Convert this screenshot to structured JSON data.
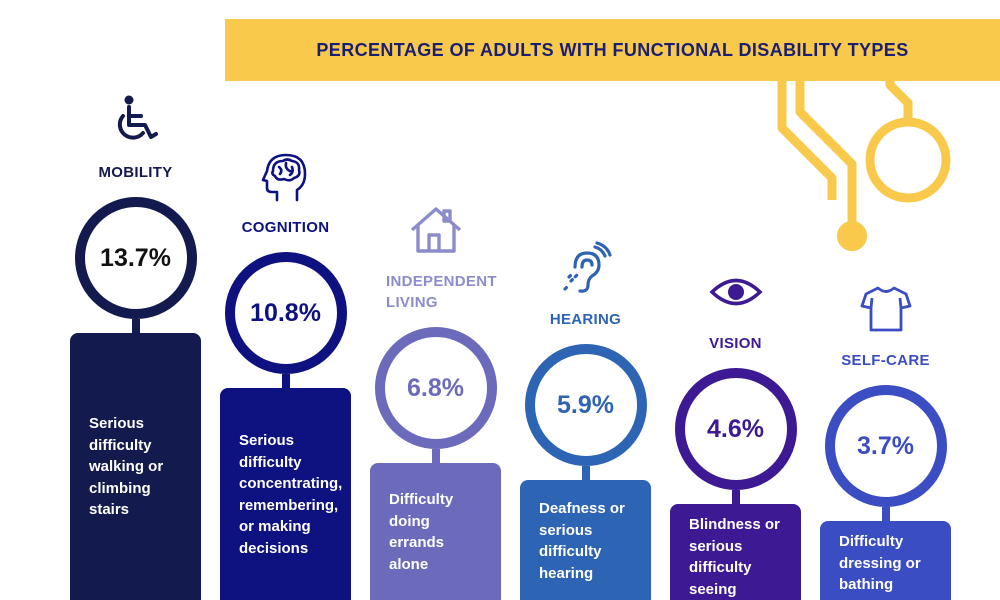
{
  "title": "PERCENTAGE OF ADULTS WITH FUNCTIONAL DISABILITY TYPES",
  "colors": {
    "title_band": "#F8C94A",
    "title_text": "#1B1F73",
    "decoration": "#F8C94A"
  },
  "chart_data": {
    "type": "bar",
    "title": "PERCENTAGE OF ADULTS WITH FUNCTIONAL DISABILITY TYPES",
    "unit": "%",
    "categories": [
      "MOBILITY",
      "COGNITION",
      "INDEPENDENT LIVING",
      "HEARING",
      "VISION",
      "SELF-CARE"
    ],
    "values": [
      13.7,
      10.8,
      6.8,
      5.9,
      4.6,
      3.7
    ],
    "items": [
      {
        "label_lines": [
          "MOBILITY"
        ],
        "value": 13.7,
        "value_text": "13.7%",
        "description_lines": [
          "Serious",
          "difficulty",
          "walking or",
          "climbing",
          "stairs"
        ],
        "color": "#131A4D",
        "label_color": "#131A4D",
        "icon": "wheelchair-icon"
      },
      {
        "label_lines": [
          "COGNITION"
        ],
        "value": 10.8,
        "value_text": "10.8%",
        "description_lines": [
          "Serious",
          "difficulty",
          "concentrating,",
          "remembering,",
          "or making",
          "decisions"
        ],
        "color": "#0E1180",
        "label_color": "#0E1180",
        "icon": "brain-head-icon"
      },
      {
        "label_lines": [
          "INDEPENDENT",
          "LIVING"
        ],
        "value": 6.8,
        "value_text": "6.8%",
        "description_lines": [
          "Difficulty",
          "doing",
          "errands",
          "alone"
        ],
        "color": "#6C6BBB",
        "label_color": "#8C8CCB",
        "icon": "house-icon"
      },
      {
        "label_lines": [
          "HEARING"
        ],
        "value": 5.9,
        "value_text": "5.9%",
        "description_lines": [
          "Deafness or",
          "serious",
          "difficulty",
          "hearing"
        ],
        "color": "#2E64B4",
        "label_color": "#2E64B4",
        "icon": "ear-icon"
      },
      {
        "label_lines": [
          "VISION"
        ],
        "value": 4.6,
        "value_text": "4.6%",
        "description_lines": [
          "Blindness or",
          "serious",
          "difficulty",
          "seeing"
        ],
        "color": "#3D1A94",
        "label_color": "#3D1A94",
        "icon": "eye-icon"
      },
      {
        "label_lines": [
          "SELF-CARE"
        ],
        "value": 3.7,
        "value_text": "3.7%",
        "description_lines": [
          "Difficulty",
          "dressing or",
          "bathing"
        ],
        "color": "#3B4DC2",
        "label_color": "#3B4DC2",
        "icon": "shirt-icon"
      }
    ]
  }
}
